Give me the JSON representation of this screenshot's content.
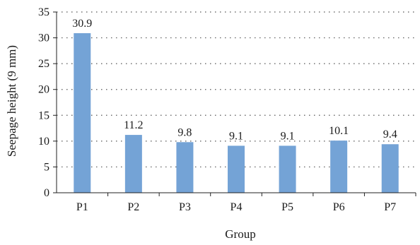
{
  "chart_data": {
    "type": "bar",
    "categories": [
      "P1",
      "P2",
      "P3",
      "P4",
      "P5",
      "P6",
      "P7"
    ],
    "values": [
      30.9,
      11.2,
      9.8,
      9.1,
      9.1,
      10.1,
      9.4
    ],
    "data_labels": [
      "30.9",
      "11.2",
      "9.8",
      "9.1",
      "9.1",
      "10.1",
      "9.4"
    ],
    "title": "",
    "xlabel": "Group",
    "ylabel": "Seepage height (9 mm)",
    "ylim": [
      0,
      35
    ],
    "yticks": [
      0,
      5,
      10,
      15,
      20,
      25,
      30,
      35
    ],
    "grid": "horizontal dotted",
    "legend": "none",
    "bar_color": "#74a3d6",
    "grid_color": "#555555",
    "axis_color": "#222222"
  }
}
